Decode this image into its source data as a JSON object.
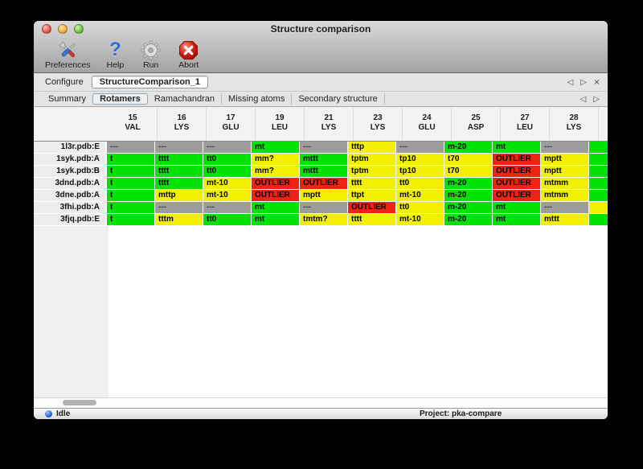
{
  "window": {
    "title": "Structure comparison"
  },
  "toolbar": {
    "items": [
      {
        "label": "Preferences",
        "icon": "tools-icon"
      },
      {
        "label": "Help",
        "icon": "help-question-icon"
      },
      {
        "label": "Run",
        "icon": "gear-icon"
      },
      {
        "label": "Abort",
        "icon": "abort-icon"
      }
    ]
  },
  "configure": {
    "label": "Configure",
    "value": "StructureComparison_1",
    "nav_prev": "◁",
    "nav_next": "▷",
    "close": "×"
  },
  "tabs": {
    "items": [
      "Summary",
      "Rotamers",
      "Ramachandran",
      "Missing atoms",
      "Secondary structure"
    ],
    "selected": "Rotamers",
    "nav_prev": "◁",
    "nav_next": "▷"
  },
  "colors": {
    "green": "#00e104",
    "yellow": "#f2ef00",
    "red": "#ee2413",
    "gray": "#9c9c9c"
  },
  "table": {
    "columns": [
      {
        "num": "15",
        "res": "VAL"
      },
      {
        "num": "16",
        "res": "LYS"
      },
      {
        "num": "17",
        "res": "GLU"
      },
      {
        "num": "19",
        "res": "LEU"
      },
      {
        "num": "21",
        "res": "LYS"
      },
      {
        "num": "23",
        "res": "LYS"
      },
      {
        "num": "24",
        "res": "GLU"
      },
      {
        "num": "25",
        "res": "ASP"
      },
      {
        "num": "27",
        "res": "LEU"
      },
      {
        "num": "28",
        "res": "LYS"
      }
    ],
    "rows": [
      {
        "label": "1l3r.pdb:E",
        "cells": [
          {
            "t": "---",
            "c": "gray"
          },
          {
            "t": "---",
            "c": "gray"
          },
          {
            "t": "---",
            "c": "gray"
          },
          {
            "t": "mt",
            "c": "green"
          },
          {
            "t": "---",
            "c": "gray"
          },
          {
            "t": "tttp",
            "c": "yellow"
          },
          {
            "t": "---",
            "c": "gray"
          },
          {
            "t": "m-20",
            "c": "green"
          },
          {
            "t": "mt",
            "c": "green"
          },
          {
            "t": "---",
            "c": "gray"
          }
        ]
      },
      {
        "label": "1syk.pdb:A",
        "cells": [
          {
            "t": "t",
            "c": "green",
            "clip": true
          },
          {
            "t": "tttt",
            "c": "green"
          },
          {
            "t": "tt0",
            "c": "green"
          },
          {
            "t": "mm?",
            "c": "yellow"
          },
          {
            "t": "mttt",
            "c": "green"
          },
          {
            "t": "tptm",
            "c": "yellow"
          },
          {
            "t": "tp10",
            "c": "yellow"
          },
          {
            "t": "t70",
            "c": "yellow"
          },
          {
            "t": "OUTLIER",
            "c": "red"
          },
          {
            "t": "mptt",
            "c": "yellow"
          }
        ]
      },
      {
        "label": "1syk.pdb:B",
        "cells": [
          {
            "t": "t",
            "c": "green",
            "clip": true
          },
          {
            "t": "tttt",
            "c": "green"
          },
          {
            "t": "tt0",
            "c": "green"
          },
          {
            "t": "mm?",
            "c": "yellow"
          },
          {
            "t": "mttt",
            "c": "green"
          },
          {
            "t": "tptm",
            "c": "yellow"
          },
          {
            "t": "tp10",
            "c": "yellow"
          },
          {
            "t": "t70",
            "c": "yellow"
          },
          {
            "t": "OUTLIER",
            "c": "red"
          },
          {
            "t": "mptt",
            "c": "yellow"
          }
        ]
      },
      {
        "label": "3dnd.pdb:A",
        "cells": [
          {
            "t": "t",
            "c": "green",
            "clip": true
          },
          {
            "t": "tttt",
            "c": "green"
          },
          {
            "t": "mt-10",
            "c": "yellow"
          },
          {
            "t": "OUTLIER",
            "c": "red"
          },
          {
            "t": "OUTLIER",
            "c": "red"
          },
          {
            "t": "tttt",
            "c": "yellow"
          },
          {
            "t": "tt0",
            "c": "yellow"
          },
          {
            "t": "m-20",
            "c": "green"
          },
          {
            "t": "OUTLIER",
            "c": "red"
          },
          {
            "t": "mtmm",
            "c": "yellow"
          }
        ]
      },
      {
        "label": "3dne.pdb:A",
        "cells": [
          {
            "t": "t",
            "c": "green",
            "clip": true
          },
          {
            "t": "mttp",
            "c": "yellow"
          },
          {
            "t": "mt-10",
            "c": "yellow"
          },
          {
            "t": "OUTLIER",
            "c": "red"
          },
          {
            "t": "mptt",
            "c": "yellow"
          },
          {
            "t": "ttpt",
            "c": "yellow"
          },
          {
            "t": "mt-10",
            "c": "yellow"
          },
          {
            "t": "m-20",
            "c": "green"
          },
          {
            "t": "OUTLIER",
            "c": "red"
          },
          {
            "t": "mtmm",
            "c": "yellow"
          }
        ]
      },
      {
        "label": "3fhi.pdb:A",
        "cells": [
          {
            "t": "t",
            "c": "green",
            "clip": true
          },
          {
            "t": "---",
            "c": "gray"
          },
          {
            "t": "---",
            "c": "gray"
          },
          {
            "t": "mt",
            "c": "green"
          },
          {
            "t": "---",
            "c": "gray"
          },
          {
            "t": "OUTLIER",
            "c": "red"
          },
          {
            "t": "tt0",
            "c": "yellow"
          },
          {
            "t": "m-20",
            "c": "green"
          },
          {
            "t": "mt",
            "c": "green"
          },
          {
            "t": "---",
            "c": "gray"
          }
        ]
      },
      {
        "label": "3fjq.pdb:E",
        "cells": [
          {
            "t": "t",
            "c": "green",
            "clip": true
          },
          {
            "t": "tttm",
            "c": "yellow"
          },
          {
            "t": "tt0",
            "c": "green"
          },
          {
            "t": "mt",
            "c": "green"
          },
          {
            "t": "tmtm?",
            "c": "yellow"
          },
          {
            "t": "tttt",
            "c": "yellow"
          },
          {
            "t": "mt-10",
            "c": "yellow"
          },
          {
            "t": "m-20",
            "c": "green"
          },
          {
            "t": "mt",
            "c": "green"
          },
          {
            "t": "mttt",
            "c": "yellow"
          }
        ]
      }
    ],
    "overflow_column": {
      "cells": [
        "green",
        "green",
        "green",
        "green",
        "green",
        "yellow",
        "green"
      ]
    }
  },
  "status": {
    "state": "Idle",
    "project": "Project: pka-compare"
  }
}
